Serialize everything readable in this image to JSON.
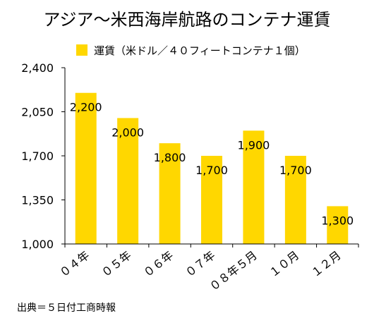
{
  "chart_data": {
    "type": "bar",
    "title": "アジア〜米西海岸航路のコンテナ運賃",
    "series": [
      {
        "name": "運賃（米ドル／４０フィートコンテナ１個）",
        "values": [
          2200,
          2000,
          1800,
          1700,
          1900,
          1700,
          1300
        ]
      }
    ],
    "categories": [
      "０４年",
      "０５年",
      "０６年",
      "０７年",
      "０８年５月",
      "１０月",
      "１２月"
    ],
    "data_labels": [
      "2,200",
      "2,000",
      "1,800",
      "1,700",
      "1,900",
      "1,700",
      "1,300"
    ],
    "y_ticks": [
      1000,
      1350,
      1700,
      2050,
      2400
    ],
    "y_tick_labels": [
      "1,000",
      "1,350",
      "1,700",
      "2,050",
      "2,400"
    ],
    "ylim": [
      1000,
      2400
    ],
    "xlabel": "",
    "ylabel": "",
    "grid": false,
    "legend_position": "top",
    "source": "出典＝５日付工商時報",
    "colors": {
      "bar": "#FFD700",
      "axis": "#000000",
      "text": "#000000",
      "background": "#FFFFFF"
    }
  }
}
